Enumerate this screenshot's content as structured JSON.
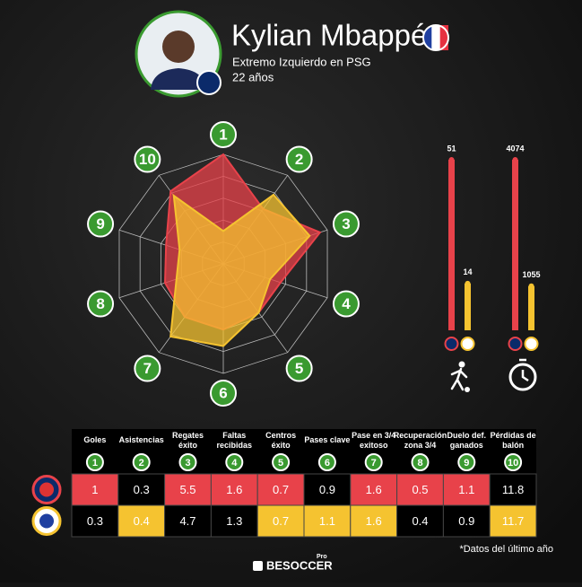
{
  "header": {
    "name": "Kylian Mbappé",
    "position": "Extremo Izquierdo en PSG",
    "age": "22 años"
  },
  "chart_data": [
    {
      "type": "radar",
      "axes": [
        1,
        2,
        3,
        4,
        5,
        6,
        7,
        8,
        9,
        10
      ],
      "rlim": [
        0,
        1
      ],
      "series": [
        {
          "color": "#e8424a",
          "values": [
            1.0,
            0.62,
            0.93,
            0.55,
            0.55,
            0.6,
            0.6,
            0.56,
            0.55,
            0.82
          ]
        },
        {
          "color": "#f5c330",
          "values": [
            0.3,
            0.78,
            0.83,
            0.45,
            0.55,
            0.75,
            0.82,
            0.45,
            0.42,
            0.77
          ]
        }
      ]
    },
    {
      "type": "bar",
      "icon": "player",
      "series": [
        {
          "color": "#e8424a",
          "values": [
            51
          ]
        },
        {
          "color": "#f5c330",
          "values": [
            14
          ]
        }
      ]
    },
    {
      "type": "bar",
      "icon": "clock",
      "series": [
        {
          "color": "#e8424a",
          "values": [
            4074
          ]
        },
        {
          "color": "#f5c330",
          "values": [
            1055
          ]
        }
      ]
    }
  ],
  "table": {
    "columns": [
      {
        "label": "Goles",
        "number": 1
      },
      {
        "label": "Asistencias",
        "number": 2
      },
      {
        "label": "Regates éxito",
        "number": 3
      },
      {
        "label": "Faltas recibidas",
        "number": 4
      },
      {
        "label": "Centros éxito",
        "number": 5
      },
      {
        "label": "Pases clave",
        "number": 6
      },
      {
        "label": "Pase en 3/4 exitoso",
        "number": 7
      },
      {
        "label": "Recuperación zona 3/4",
        "number": 8
      },
      {
        "label": "Duelo def. ganados",
        "number": 9
      },
      {
        "label": "Pérdidas de balón",
        "number": 10
      }
    ],
    "rows": [
      {
        "color": "#e8424a",
        "values": [
          1,
          0.3,
          5.5,
          1.6,
          0.7,
          0.9,
          1.6,
          0.5,
          1.1,
          11.8
        ],
        "highlight": [
          true,
          false,
          true,
          true,
          true,
          false,
          true,
          true,
          true,
          false
        ]
      },
      {
        "color": "#f5c330",
        "values": [
          0.3,
          0.4,
          4.7,
          1.3,
          0.7,
          1.1,
          1.6,
          0.4,
          0.9,
          11.7
        ],
        "highlight": [
          false,
          true,
          false,
          false,
          true,
          true,
          true,
          false,
          false,
          true
        ]
      }
    ]
  },
  "footnote": "*Datos del último año",
  "brand": {
    "logo": "BESOCCER",
    "tag": "Pro"
  }
}
